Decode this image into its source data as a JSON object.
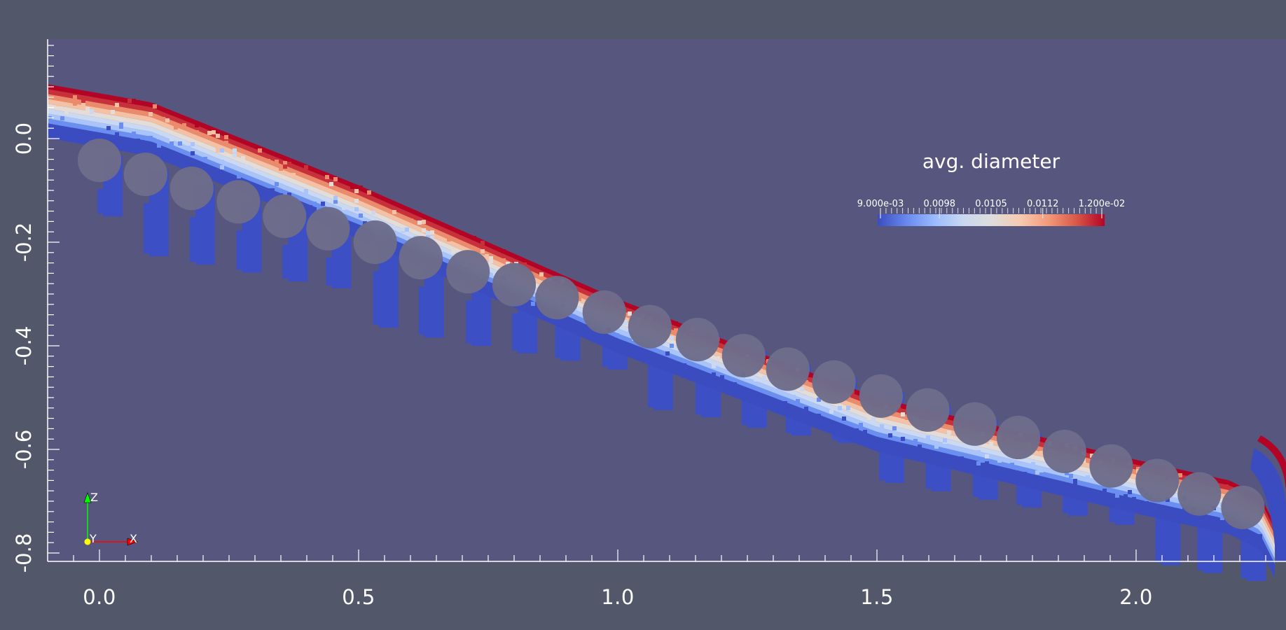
{
  "window": {
    "background_color": "#525869",
    "plot_background_color": "#57567f"
  },
  "chart_data": {
    "type": "heatmap",
    "title": "",
    "description": "2D pseudocolor render of a granular/particle flow over an inclined row of cylinders, colored by avg. diameter",
    "xlabel": "",
    "ylabel": "",
    "xlim": [
      -0.1,
      2.28
    ],
    "ylim": [
      -0.82,
      0.19
    ],
    "x_ticks": [
      0.0,
      0.5,
      1.0,
      1.5,
      2.0
    ],
    "x_tick_labels": [
      "0.0",
      "0.5",
      "1.0",
      "1.5",
      "2.0"
    ],
    "y_ticks": [
      0.0,
      -0.2,
      -0.4,
      -0.6,
      -0.8
    ],
    "y_tick_labels": [
      "0.0",
      "-0.2",
      "-0.4",
      "-0.6",
      "-0.8"
    ],
    "x_minor_step": 0.05,
    "y_minor_step": 0.02,
    "grid": false,
    "colorbar": {
      "title": "avg. diameter",
      "min": 0.009,
      "max": 0.012,
      "tick_values": [
        0.009,
        0.0098,
        0.0105,
        0.0112,
        0.012
      ],
      "tick_labels": [
        "9.000e-03",
        "0.0098",
        "0.0105",
        "0.0112",
        "1.200e-02"
      ],
      "colormap": "cool-to-warm",
      "colors": [
        "#3b4cc0",
        "#6788ee",
        "#9abbff",
        "#c9d7f0",
        "#dddddd",
        "#f6cbb2",
        "#f49a7b",
        "#d95847",
        "#b40426"
      ],
      "position": "upper-right"
    },
    "cylinders": {
      "color": "#6d6c8a",
      "radius": 0.042,
      "centers": [
        [
          0.0,
          -0.042
        ],
        [
          0.089,
          -0.069
        ],
        [
          0.178,
          -0.096
        ],
        [
          0.268,
          -0.122
        ],
        [
          0.357,
          -0.15
        ],
        [
          0.441,
          -0.174
        ],
        [
          0.532,
          -0.2
        ],
        [
          0.62,
          -0.23
        ],
        [
          0.711,
          -0.257
        ],
        [
          0.8,
          -0.282
        ],
        [
          0.883,
          -0.307
        ],
        [
          0.974,
          -0.335
        ],
        [
          1.062,
          -0.363
        ],
        [
          1.154,
          -0.388
        ],
        [
          1.243,
          -0.419
        ],
        [
          1.328,
          -0.445
        ],
        [
          1.417,
          -0.47
        ],
        [
          1.508,
          -0.497
        ],
        [
          1.598,
          -0.524
        ],
        [
          1.689,
          -0.551
        ],
        [
          1.773,
          -0.577
        ],
        [
          1.862,
          -0.604
        ],
        [
          1.952,
          -0.632
        ],
        [
          2.041,
          -0.66
        ],
        [
          2.122,
          -0.686
        ],
        [
          2.206,
          -0.712
        ]
      ]
    },
    "flow_band": {
      "top_edge": [
        [
          -0.1,
          0.105
        ],
        [
          0.1,
          0.07
        ],
        [
          0.5,
          -0.09
        ],
        [
          1.0,
          -0.31
        ],
        [
          1.5,
          -0.5
        ],
        [
          2.0,
          -0.62
        ],
        [
          2.18,
          -0.66
        ],
        [
          2.24,
          -0.69
        ],
        [
          2.27,
          -0.75
        ],
        [
          2.28,
          -0.82
        ]
      ],
      "thickness": 0.085,
      "layers_bottom_to_top": [
        "#3b4cc0",
        "#6b8ff0",
        "#a9c4fb",
        "#cad8f2",
        "#e4dcd6",
        "#f5c1a4",
        "#ec8a6c",
        "#c8313a",
        "#b40426"
      ]
    },
    "annotations": [
      {
        "text": "avg. diameter",
        "role": "colorbar-title"
      }
    ]
  },
  "axes_triad": {
    "labels": {
      "x": "X",
      "y": "Y",
      "z": "Z"
    },
    "colors": {
      "x": "#ff0000",
      "y": "#ffff00",
      "z": "#00ff00"
    }
  }
}
